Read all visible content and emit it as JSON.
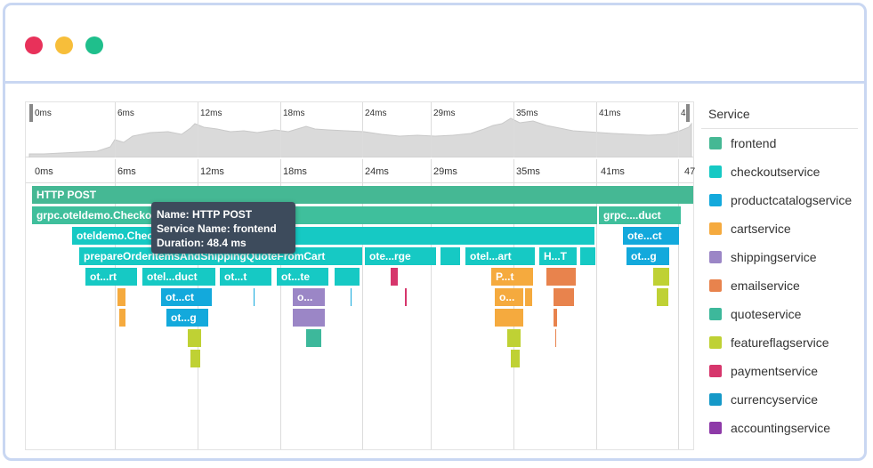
{
  "window": {
    "dots": [
      "#e8315a",
      "#f7be3a",
      "#1fbf8c"
    ]
  },
  "minimap_ticks": [
    "0ms",
    "6ms",
    "12ms",
    "18ms",
    "24ms",
    "29ms",
    "35ms",
    "41ms",
    "4"
  ],
  "axis_ticks": [
    "0ms",
    "6ms",
    "12ms",
    "18ms",
    "24ms",
    "29ms",
    "35ms",
    "41ms",
    "47"
  ],
  "spans": {
    "http_post": "HTTP POST",
    "grpc_checkout": "grpc.oteldemo.Checko",
    "grpc_duct": "grpc....duct",
    "oteldemo_check": "oteldemo.Chec",
    "ote_ct_right": "ote...ct",
    "prepare_order": "prepareOrderItemsAndShippingQuoteFromCart",
    "ote_rge": "ote...rge",
    "otel_art": "otel...art",
    "h_t": "H...T",
    "ot_g_right": "ot...g",
    "ot_rt": "ot...rt",
    "otel_duct": "otel...duct",
    "ot_t": "ot...t",
    "ot_te": "ot...te",
    "p_t": "P...t",
    "ot_ct": "ot...ct",
    "o_1": "o...",
    "o_2": "o...",
    "ot_g": "ot...g"
  },
  "tooltip": {
    "name": "Name: HTTP POST",
    "service": "Service Name: frontend",
    "duration": "Duration: 48.4 ms"
  },
  "legend": {
    "title": "Service",
    "items": [
      {
        "label": "frontend",
        "color": "#45b894"
      },
      {
        "label": "checkoutservice",
        "color": "#16c9c4"
      },
      {
        "label": "productcatalogservice",
        "color": "#13a9dc"
      },
      {
        "label": "cartservice",
        "color": "#f5aa3e"
      },
      {
        "label": "shippingservice",
        "color": "#9b86c6"
      },
      {
        "label": "emailservice",
        "color": "#e8834d"
      },
      {
        "label": "quoteservice",
        "color": "#3db89b"
      },
      {
        "label": "featureflagservice",
        "color": "#bfd134"
      },
      {
        "label": "paymentservice",
        "color": "#d6366c"
      },
      {
        "label": "currencyservice",
        "color": "#1599c8"
      },
      {
        "label": "accountingservice",
        "color": "#8e3aa8"
      }
    ]
  }
}
